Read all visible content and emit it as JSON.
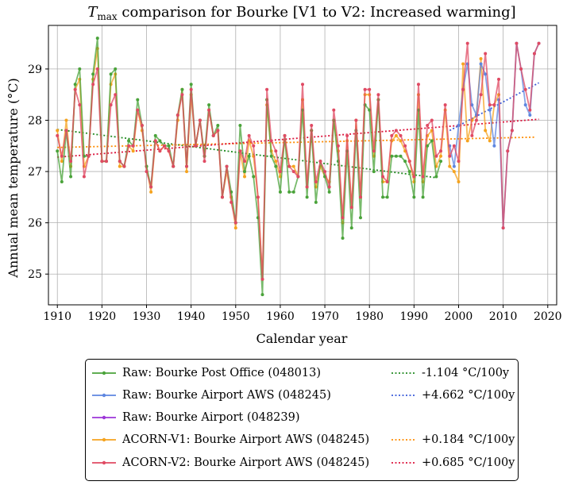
{
  "chart_data": {
    "type": "line",
    "title_prefix": "T",
    "title_sub": "max",
    "title_rest": " comparison for Bourke   [V1 to V2: Increased warming]",
    "xlabel": "Calendar year",
    "ylabel": "Annual mean temperature (°C)",
    "xlim": [
      1908,
      2022
    ],
    "ylim": [
      24.4,
      29.85
    ],
    "xticks": [
      1910,
      1920,
      1930,
      1940,
      1950,
      1960,
      1970,
      1980,
      1990,
      2000,
      2010,
      2020
    ],
    "yticks": [
      25,
      26,
      27,
      28,
      29
    ],
    "grid": true,
    "legend_position": "bottom-outside",
    "series": [
      {
        "name": "Raw: Bourke Post Office (048013)",
        "color": "#4aa33a",
        "x": [
          1910,
          1911,
          1912,
          1913,
          1914,
          1915,
          1916,
          1917,
          1918,
          1919,
          1920,
          1921,
          1922,
          1923,
          1924,
          1925,
          1926,
          1927,
          1928,
          1929,
          1930,
          1931,
          1932,
          1933,
          1934,
          1935,
          1936,
          1937,
          1938,
          1939,
          1940,
          1941,
          1942,
          1943,
          1944,
          1945,
          1946,
          1947,
          1948,
          1949,
          1950,
          1951,
          1952,
          1953,
          1954,
          1955,
          1956,
          1957,
          1958,
          1959,
          1960,
          1961,
          1962,
          1963,
          1964,
          1965,
          1966,
          1967,
          1968,
          1969,
          1970,
          1971,
          1972,
          1973,
          1974,
          1975,
          1976,
          1977,
          1978,
          1979,
          1980,
          1981,
          1982,
          1983,
          1984,
          1985,
          1986,
          1987,
          1988,
          1989,
          1990,
          1991,
          1992,
          1993,
          1994,
          1995,
          1996
        ],
        "values": [
          27.4,
          26.8,
          27.8,
          26.9,
          28.7,
          29.0,
          27.3,
          27.3,
          28.9,
          29.6,
          27.2,
          27.2,
          28.9,
          29.0,
          27.2,
          27.1,
          27.6,
          27.5,
          28.4,
          27.9,
          27.1,
          26.7,
          27.7,
          27.6,
          27.5,
          27.5,
          27.1,
          28.1,
          28.6,
          27.1,
          28.7,
          27.5,
          28.0,
          27.3,
          28.3,
          27.7,
          27.9,
          26.5,
          27.1,
          26.6,
          26.0,
          27.9,
          27.0,
          27.3,
          26.9,
          26.1,
          24.6,
          28.4,
          27.3,
          27.1,
          26.6,
          27.7,
          26.6,
          26.6,
          26.9,
          28.2,
          26.5,
          27.8,
          26.4,
          27.2,
          26.9,
          26.6,
          28.0,
          27.2,
          25.7,
          27.4,
          25.9,
          27.8,
          26.1,
          28.3,
          28.2,
          27.0,
          28.4,
          26.5,
          26.5,
          27.3,
          27.3,
          27.3,
          27.2,
          27.0,
          26.5,
          28.2,
          26.5,
          27.5,
          27.6,
          26.9,
          27.2
        ]
      },
      {
        "name": "Raw: Bourke Airport AWS (048245)",
        "color": "#5e86e0",
        "x": [
          1998,
          1999,
          2000,
          2001,
          2002,
          2003,
          2004,
          2005,
          2006,
          2007,
          2008,
          2009,
          2010,
          2011,
          2012,
          2013,
          2014,
          2015,
          2016,
          2017,
          2018
        ],
        "values": [
          27.5,
          27.1,
          27.9,
          28.6,
          29.1,
          28.3,
          28.1,
          29.1,
          28.9,
          28.2,
          27.5,
          28.4,
          25.9,
          27.4,
          27.8,
          29.5,
          29.0,
          28.3,
          28.1,
          29.3,
          29.5
        ]
      },
      {
        "name": "Raw: Bourke Airport (048239)",
        "color": "#9c35d8",
        "x": [],
        "values": []
      },
      {
        "name": "ACORN-V1: Bourke Airport AWS (048245)",
        "color": "#f5a31f",
        "x": [
          1910,
          1911,
          1912,
          1913,
          1914,
          1915,
          1916,
          1917,
          1918,
          1919,
          1920,
          1921,
          1922,
          1923,
          1924,
          1925,
          1926,
          1927,
          1928,
          1929,
          1930,
          1931,
          1932,
          1933,
          1934,
          1935,
          1936,
          1937,
          1938,
          1939,
          1940,
          1941,
          1942,
          1943,
          1944,
          1945,
          1946,
          1947,
          1948,
          1949,
          1950,
          1951,
          1952,
          1953,
          1954,
          1955,
          1956,
          1957,
          1958,
          1959,
          1960,
          1961,
          1962,
          1963,
          1964,
          1965,
          1966,
          1967,
          1968,
          1969,
          1970,
          1971,
          1972,
          1973,
          1974,
          1975,
          1976,
          1977,
          1978,
          1979,
          1980,
          1981,
          1982,
          1983,
          1984,
          1985,
          1986,
          1987,
          1988,
          1989,
          1990,
          1991,
          1992,
          1993,
          1994,
          1995,
          1996,
          1997,
          1998,
          1999,
          2000,
          2001,
          2002,
          2003,
          2004,
          2005,
          2006,
          2007,
          2008,
          2009
        ],
        "values": [
          27.8,
          27.2,
          28.0,
          27.1,
          28.6,
          28.8,
          27.1,
          27.3,
          28.8,
          29.4,
          27.2,
          27.2,
          28.7,
          28.9,
          27.1,
          27.1,
          27.5,
          27.4,
          28.2,
          27.8,
          27.1,
          26.6,
          27.6,
          27.4,
          27.5,
          27.4,
          27.1,
          28.0,
          28.6,
          27.0,
          28.5,
          27.5,
          28.0,
          27.3,
          28.2,
          27.7,
          27.8,
          26.5,
          27.0,
          26.5,
          25.9,
          27.4,
          26.9,
          27.6,
          27.3,
          26.5,
          24.9,
          28.3,
          27.4,
          27.2,
          26.9,
          27.6,
          27.1,
          27.1,
          26.9,
          28.4,
          26.7,
          27.8,
          26.7,
          27.1,
          26.9,
          26.8,
          28.0,
          27.4,
          26.0,
          27.6,
          26.3,
          28.0,
          26.5,
          28.5,
          28.5,
          27.3,
          28.4,
          26.8,
          26.8,
          27.6,
          27.7,
          27.6,
          27.4,
          27.2,
          26.8,
          28.5,
          26.8,
          27.7,
          27.8,
          27.1,
          27.3,
          28.2,
          27.1,
          27.0,
          26.8,
          29.1,
          27.6,
          28.0,
          28.1,
          29.2,
          27.8,
          27.6,
          28.3,
          28.5
        ]
      },
      {
        "name": "ACORN-V2: Bourke Airport AWS (048245)",
        "color": "#e04a63",
        "x": [
          1910,
          1911,
          1912,
          1913,
          1914,
          1915,
          1916,
          1917,
          1918,
          1919,
          1920,
          1921,
          1922,
          1923,
          1924,
          1925,
          1926,
          1927,
          1928,
          1929,
          1930,
          1931,
          1932,
          1933,
          1934,
          1935,
          1936,
          1937,
          1938,
          1939,
          1940,
          1941,
          1942,
          1943,
          1944,
          1945,
          1946,
          1947,
          1948,
          1949,
          1950,
          1951,
          1952,
          1953,
          1954,
          1955,
          1956,
          1957,
          1958,
          1959,
          1960,
          1961,
          1962,
          1963,
          1964,
          1965,
          1966,
          1967,
          1968,
          1969,
          1970,
          1971,
          1972,
          1973,
          1974,
          1975,
          1976,
          1977,
          1978,
          1979,
          1980,
          1981,
          1982,
          1983,
          1984,
          1985,
          1986,
          1987,
          1988,
          1989,
          1990,
          1991,
          1992,
          1993,
          1994,
          1995,
          1996,
          1997,
          1998,
          1999,
          2000,
          2001,
          2002,
          2003,
          2004,
          2005,
          2006,
          2007,
          2008,
          2009,
          2010,
          2011,
          2012,
          2013,
          2014,
          2015,
          2016,
          2017,
          2018
        ],
        "values": [
          27.7,
          27.3,
          27.8,
          27.2,
          28.6,
          28.3,
          26.9,
          27.3,
          28.7,
          29.0,
          27.2,
          27.2,
          28.3,
          28.5,
          27.2,
          27.1,
          27.5,
          27.5,
          28.2,
          27.9,
          27.0,
          26.7,
          27.6,
          27.4,
          27.5,
          27.4,
          27.1,
          28.1,
          28.5,
          27.1,
          28.6,
          27.5,
          28.0,
          27.2,
          28.2,
          27.7,
          27.8,
          26.5,
          27.1,
          26.4,
          26.0,
          27.4,
          27.2,
          27.7,
          27.5,
          26.5,
          24.9,
          28.6,
          27.6,
          27.4,
          27.0,
          27.7,
          27.1,
          27.0,
          26.9,
          28.7,
          26.7,
          27.9,
          26.8,
          27.2,
          27.0,
          26.7,
          28.2,
          27.5,
          26.1,
          27.7,
          26.3,
          28.0,
          26.5,
          28.6,
          28.6,
          27.4,
          28.5,
          26.9,
          26.8,
          27.7,
          27.8,
          27.7,
          27.5,
          27.2,
          26.9,
          28.7,
          26.9,
          27.9,
          28.0,
          27.3,
          27.4,
          28.3,
          27.3,
          27.5,
          27.2,
          28.6,
          29.5,
          27.7,
          28.0,
          28.5,
          29.3,
          28.3,
          28.3,
          28.8,
          25.9,
          27.4,
          27.8,
          29.5,
          29.0,
          28.6,
          28.2,
          29.3,
          29.5
        ]
      }
    ],
    "trends": [
      {
        "label": "-1.104 °C/100y",
        "color": "#228b22",
        "x": [
          1910,
          1995
        ],
        "values": [
          27.82,
          26.88
        ]
      },
      {
        "label": "+4.662 °C/100y",
        "color": "#3a5bd9",
        "x": [
          1998,
          2018
        ],
        "values": [
          27.8,
          28.73
        ]
      },
      {
        "label": "+0.184 °C/100y",
        "color": "#ff8c00",
        "x": [
          1910,
          2017
        ],
        "values": [
          27.47,
          27.67
        ]
      },
      {
        "label": "+0.685 °C/100y",
        "color": "#dc143c",
        "x": [
          1910,
          2018
        ],
        "values": [
          27.28,
          28.02
        ]
      }
    ]
  }
}
